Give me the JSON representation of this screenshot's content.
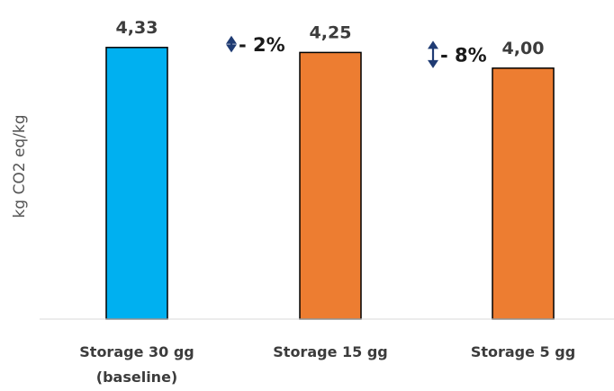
{
  "chart_data": {
    "type": "bar",
    "categories": [
      [
        "Storage 30 gg",
        "(baseline)"
      ],
      [
        "Storage 15 gg"
      ],
      [
        "Storage 5 gg"
      ]
    ],
    "values": [
      4.33,
      4.25,
      4.0
    ],
    "data_labels": [
      "4,33",
      "4,25",
      "4,00"
    ],
    "bar_colors": [
      "#00b0f0",
      "#ed7d31",
      "#ed7d31"
    ],
    "ylabel": "kg CO2 eq/kg",
    "ylim": [
      0,
      4.8
    ],
    "grid": false,
    "legend": "none",
    "annotations": [
      {
        "text": "- 2%",
        "icon": "double-arrow-vertical-icon",
        "between": [
          0,
          1
        ]
      },
      {
        "text": "- 8%",
        "icon": "double-arrow-vertical-icon",
        "between": [
          1,
          2
        ]
      }
    ],
    "colors": {
      "bar_outline": "#000000",
      "axis": "#d9d9d9",
      "arrow": "#1f3b73"
    }
  }
}
